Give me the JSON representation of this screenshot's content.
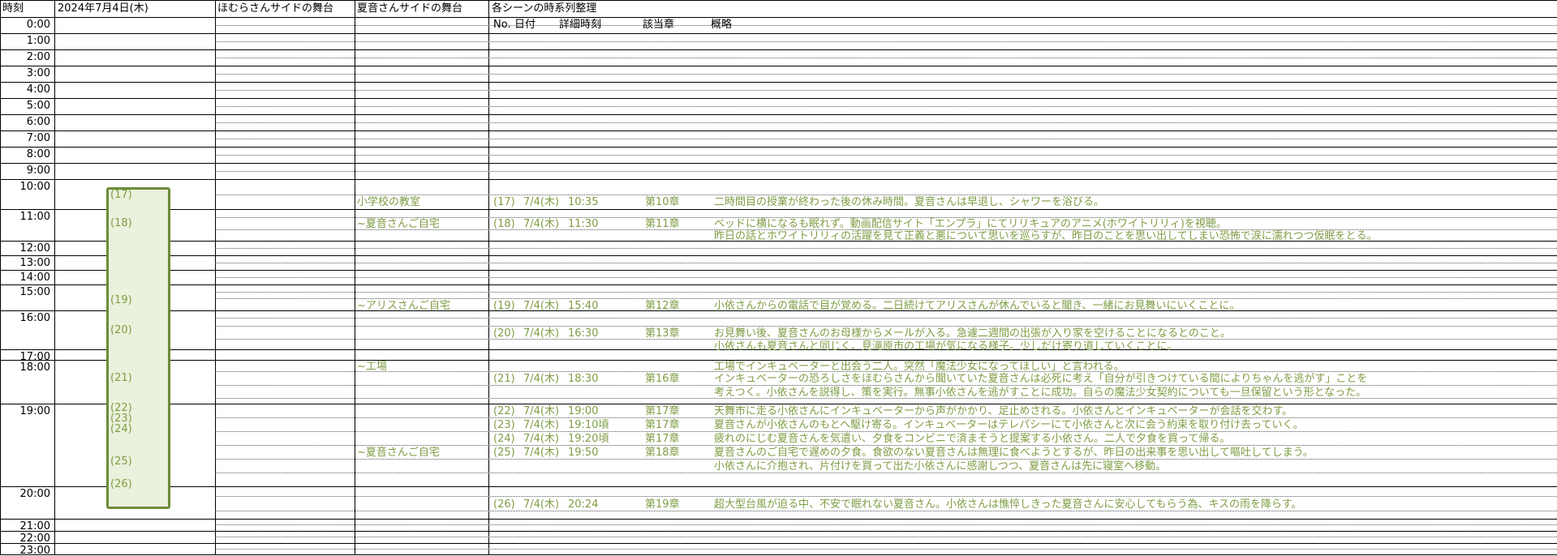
{
  "sheet": {
    "headers": {
      "time": "時刻",
      "date": "2024年7月4日(木)",
      "homura_stage": "ほむらさんサイドの舞台",
      "natsune_stage": "夏音さんサイドの舞台",
      "scenes_title": "各シーンの時系列整理"
    },
    "scene_columns": {
      "no": "No.",
      "date": "日付",
      "detail_time": "詳細時刻",
      "chapter": "該当章",
      "summary": "概略"
    },
    "hours": [
      "0:00",
      "1:00",
      "2:00",
      "3:00",
      "4:00",
      "5:00",
      "6:00",
      "7:00",
      "8:00",
      "9:00",
      "10:00",
      "11:00",
      "12:00",
      "13:00",
      "14:00",
      "15:00",
      "16:00",
      "17:00",
      "18:00",
      "19:00",
      "20:00",
      "21:00",
      "22:00",
      "23:00"
    ],
    "box_labels": [
      "(17)",
      "(18)",
      "(19)",
      "(20)",
      "(21)",
      "(22)",
      "(23)",
      "(24)",
      "(25)",
      "(26)"
    ],
    "natsune_stage_entries": [
      "小学校の教室",
      "~夏音さんご自宅",
      "~アリスさんご自宅",
      "~工場",
      "~夏音さんご自宅"
    ],
    "scenes": [
      {
        "no": "(17)",
        "date": "7/4(木)",
        "time": "10:35",
        "chapter": "第10章",
        "summary": "二時間目の授業が終わった後の休み時間。夏音さんは早退し、シャワーを浴びる。"
      },
      {
        "no": "(18)",
        "date": "7/4(木)",
        "time": "11:30",
        "chapter": "第11章",
        "summary": "ベッドに横になるも眠れず。動画配信サイト「エンプラ」にてリリキュアのアニメ(ホワイトリリィ)を視聴。"
      },
      {
        "no": "",
        "date": "",
        "time": "",
        "chapter": "",
        "summary": "昨日の話とホワイトリリィの活躍を見て正義と悪について思いを巡らすが、昨日のことを思い出してしまい恐怖で涙に濡れつつ仮眠をとる。"
      },
      {
        "no": "(19)",
        "date": "7/4(木)",
        "time": "15:40",
        "chapter": "第12章",
        "summary": "小依さんからの電話で目が覚める。二日続けてアリスさんが休んでいると聞き、一緒にお見舞いにいくことに。"
      },
      {
        "no": "(20)",
        "date": "7/4(木)",
        "time": "16:30",
        "chapter": "第13章",
        "summary": "お見舞い後、夏音さんのお母様からメールが入る。急遽二週間の出張が入り家を空けることになるとのこと。"
      },
      {
        "no": "",
        "date": "",
        "time": "",
        "chapter": "",
        "summary": "小依さんも夏音さんと同じく、見滝原市の工場が気になる様子。少しだけ寄り道していくことに。"
      },
      {
        "no": "",
        "date": "",
        "time": "",
        "chapter": "",
        "summary": "工場でインキュベーターと出会う二人。突然「魔法少女になってほしい」と言われる。"
      },
      {
        "no": "(21)",
        "date": "7/4(木)",
        "time": "18:30",
        "chapter": "第16章",
        "summary": "インキュベーターの恐ろしさをほむらさんから聞いていた夏音さんは必死に考え「自分が引きつけている間によりちゃんを逃がす」ことを"
      },
      {
        "no": "",
        "date": "",
        "time": "",
        "chapter": "",
        "summary": "考えつく。小依さんを説得し、策を実行。無事小依さんを逃がすことに成功。自らの魔法少女契約についても一旦保留という形となった。"
      },
      {
        "no": "(22)",
        "date": "7/4(木)",
        "time": "19:00",
        "chapter": "第17章",
        "summary": "天舞市に走る小依さんにインキュベーターから声がかかり、足止めされる。小依さんとインキュベーターが会話を交わす。"
      },
      {
        "no": "(23)",
        "date": "7/4(木)",
        "time": "19:10頃",
        "chapter": "第17章",
        "summary": "夏音さんが小依さんのもとへ駆け寄る。インキュベーターはテレパシーにて小依さんと次に会う約束を取り付け去っていく。"
      },
      {
        "no": "(24)",
        "date": "7/4(木)",
        "time": "19:20頃",
        "chapter": "第17章",
        "summary": "疲れのにじむ夏音さんを気遣い、夕食をコンビニで済まそうと提案する小依さん。二人で夕食を買って帰る。"
      },
      {
        "no": "(25)",
        "date": "7/4(木)",
        "time": "19:50",
        "chapter": "第18章",
        "summary": "夏音さんのご自宅で遅めの夕食。食欲のない夏音さんは無理に食べようとするが、昨日の出来事を思い出して嘔吐してしまう。"
      },
      {
        "no": "",
        "date": "",
        "time": "",
        "chapter": "",
        "summary": "小依さんに介抱され、片付けを買って出た小依さんに感謝しつつ、夏音さんは先に寝室へ移動。"
      },
      {
        "no": "(26)",
        "date": "7/4(木)",
        "time": "20:24",
        "chapter": "第19章",
        "summary": "超大型台風が迫る中、不安で眠れない夏音さん。小依さんは憔悴しきった夏音さんに安心してもらう為、キスの雨を降らす。"
      }
    ],
    "colors": {
      "content_green": "#7f9d45",
      "box_border": "#6d8c39",
      "box_fill": "#eaf1dc",
      "grid": "#000000"
    }
  }
}
